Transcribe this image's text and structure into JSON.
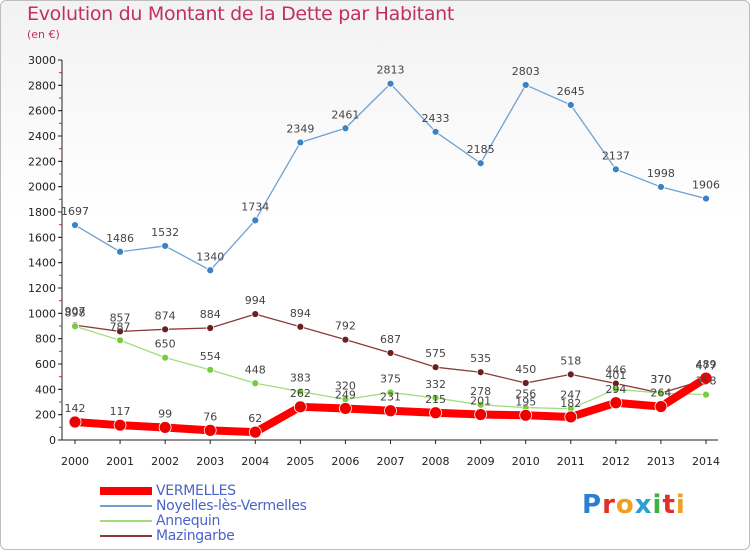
{
  "title": "Evolution du Montant de la Dette par Habitant",
  "subtitle": "(en €)",
  "logo": "Proxiti",
  "chart_data": {
    "type": "line",
    "x": [
      "2000",
      "2001",
      "2002",
      "2003",
      "2004",
      "2005",
      "2006",
      "2007",
      "2008",
      "2009",
      "2010",
      "2011",
      "2012",
      "2013",
      "2014"
    ],
    "ylim": [
      0,
      3000
    ],
    "yticks": [
      0,
      200,
      400,
      600,
      800,
      1000,
      1200,
      1400,
      1600,
      1800,
      2000,
      2200,
      2400,
      2600,
      2800,
      3000
    ],
    "grid": false,
    "legend": "bottom-left",
    "series": [
      {
        "name": "Noyelles-lès-Vermelles",
        "color": "#6fa0d0",
        "marker": "#3b82c4",
        "width": 1.3,
        "radius": 3.5,
        "values": [
          1697,
          1486,
          1532,
          1340,
          1734,
          2349,
          2461,
          2813,
          2433,
          2185,
          2803,
          2645,
          2137,
          1998,
          1906
        ]
      },
      {
        "name": "Mazingarbe",
        "color": "#8a3a3a",
        "marker": "#6b1f1f",
        "width": 1.3,
        "radius": 3.5,
        "values": [
          907,
          857,
          874,
          884,
          994,
          894,
          792,
          687,
          575,
          535,
          450,
          518,
          446,
          370,
          477
        ]
      },
      {
        "name": "Annequin",
        "color": "#a0dc80",
        "marker": "#7acc3c",
        "width": 1.3,
        "radius": 3.5,
        "values": [
          898,
          787,
          650,
          554,
          448,
          383,
          320,
          375,
          332,
          278,
          256,
          247,
          401,
          370,
          358
        ]
      },
      {
        "name": "VERMELLES",
        "color": "#ff0000",
        "marker": "#ee0000",
        "width": 8,
        "radius": 6,
        "values": [
          142,
          117,
          99,
          76,
          62,
          262,
          249,
          231,
          215,
          201,
          195,
          182,
          294,
          264,
          489
        ]
      }
    ]
  }
}
